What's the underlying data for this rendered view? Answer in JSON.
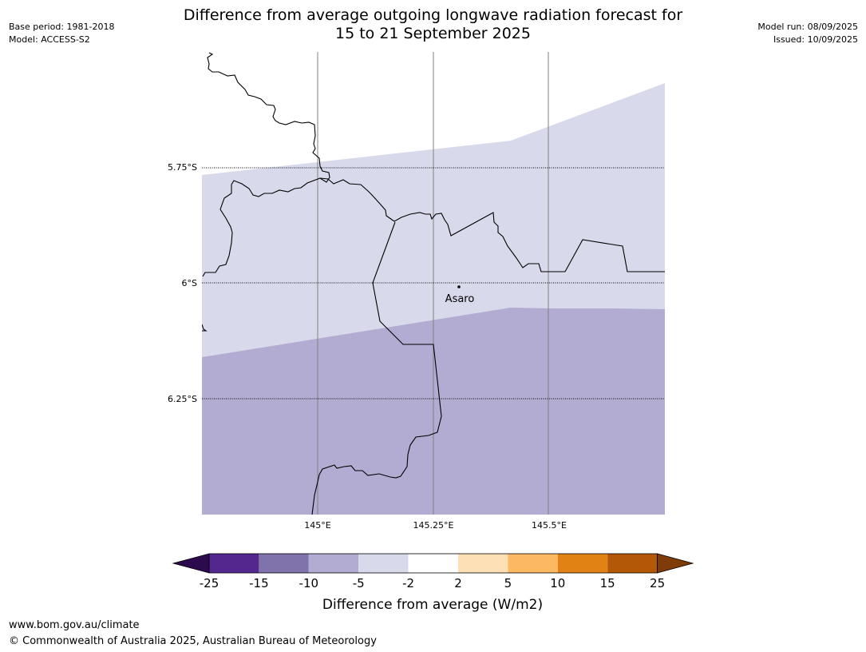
{
  "header": {
    "title_line1": "Difference from average outgoing longwave radiation forecast for",
    "title_line2": "15 to 21 September 2025",
    "base_period": "Base period: 1981-2018",
    "model": "Model: ACCESS-S2",
    "model_run": "Model run: 08/09/2025",
    "issued": "Issued: 10/09/2025"
  },
  "map": {
    "lat_labels": [
      "5.75°S",
      "6°S",
      "6.25°S"
    ],
    "lon_labels": [
      "145°E",
      "145.25°E",
      "145.5°E"
    ],
    "place": {
      "name": "Asaro"
    }
  },
  "legend": {
    "title": "Difference from average (W/m2)",
    "ticks": [
      "-25",
      "-15",
      "-10",
      "-5",
      "-2",
      "2",
      "5",
      "10",
      "15",
      "25"
    ],
    "colors": [
      "#2d0a4e",
      "#54278f",
      "#8073ac",
      "#b2abd2",
      "#d8daeb",
      "#ffffff",
      "#fee0b6",
      "#fdb863",
      "#e08214",
      "#b35806",
      "#7f3b08"
    ]
  },
  "footer": {
    "url": "www.bom.gov.au/climate",
    "copyright": "© Commonwealth of Australia 2025, Australian Bureau of Meteorology"
  }
}
